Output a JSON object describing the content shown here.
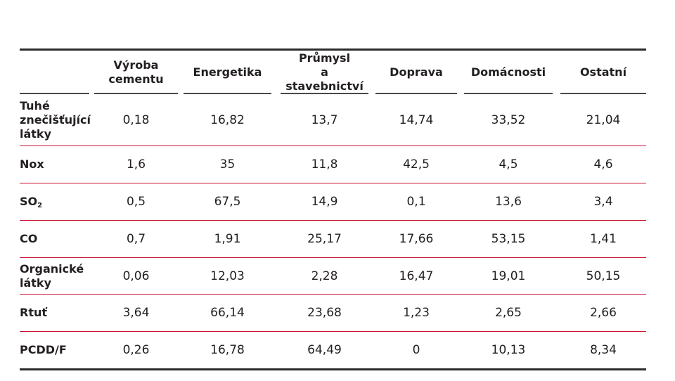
{
  "table": {
    "headers": [
      "",
      "Výroba\ncementu",
      "Energetika",
      "Průmysl\na stavebnictví",
      "Doprava",
      "Domácnosti",
      "Ostatní"
    ],
    "rows": [
      {
        "label": "Tuhé\nznečišťující\nlátky",
        "values": [
          "0,18",
          "16,82",
          "13,7",
          "14,74",
          "33,52",
          "21,04"
        ]
      },
      {
        "label": "Nox",
        "values": [
          "1,6",
          "35",
          "11,8",
          "42,5",
          "4,5",
          "4,6"
        ]
      },
      {
        "label": "SO",
        "label_sub": "2",
        "values": [
          "0,5",
          "67,5",
          "14,9",
          "0,1",
          "13,6",
          "3,4"
        ]
      },
      {
        "label": "CO",
        "values": [
          "0,7",
          "1,91",
          "25,17",
          "17,66",
          "53,15",
          "1,41"
        ]
      },
      {
        "label": "Organické\nlátky",
        "values": [
          "0,06",
          "12,03",
          "2,28",
          "16,47",
          "19,01",
          "50,15"
        ]
      },
      {
        "label": "Rtuť",
        "values": [
          "3,64",
          "66,14",
          "23,68",
          "1,23",
          "2,65",
          "2,66"
        ]
      },
      {
        "label": "PCDD/F",
        "values": [
          "0,26",
          "16,78",
          "64,49",
          "0",
          "10,13",
          "8,34"
        ]
      }
    ]
  },
  "colors": {
    "row_divider": "#c8102e",
    "rule": "#2b2b2b"
  }
}
